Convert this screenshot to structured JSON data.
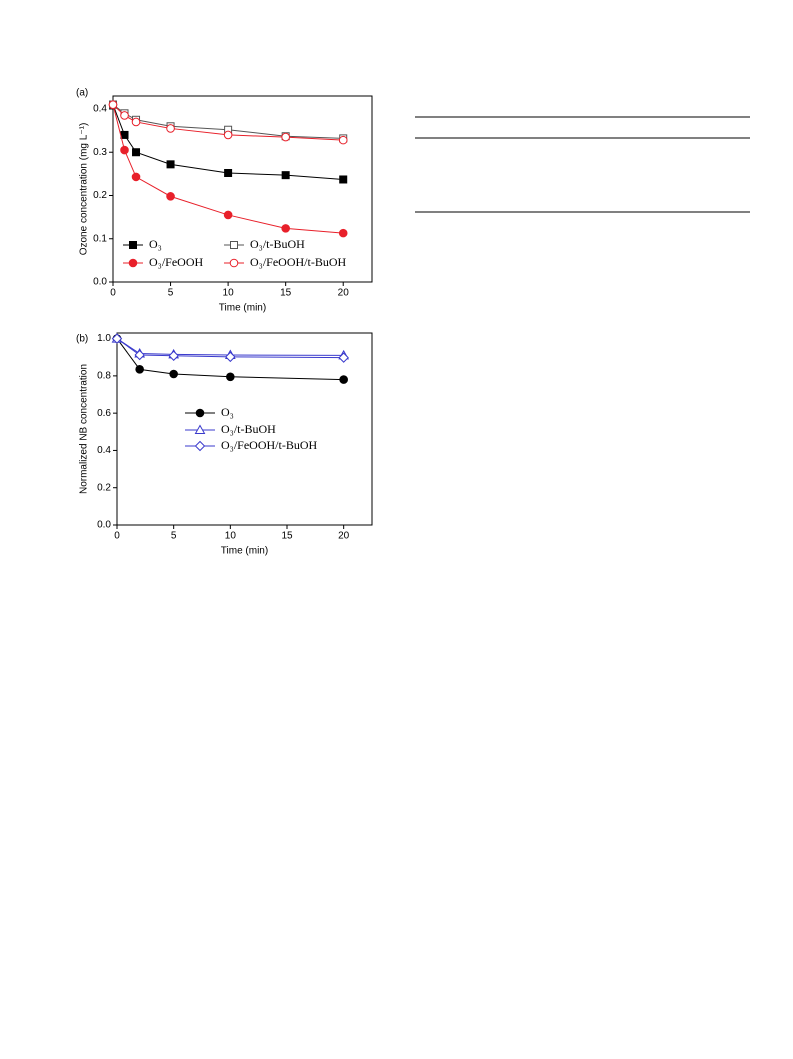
{
  "chart_data": [
    {
      "type": "line",
      "title": "(a)",
      "x_label": "Time (min)",
      "y_label": "Ozone concentration (mg L⁻¹)",
      "x": [
        0,
        1,
        2,
        5,
        10,
        15,
        20
      ],
      "xlim": [
        0,
        22.5
      ],
      "xticks": [
        0,
        5,
        10,
        15,
        20
      ],
      "ylim": [
        0,
        0.43
      ],
      "yticks": [
        {
          "value": 0,
          "label": "0.0"
        },
        0.1,
        0.2,
        0.3,
        0.4
      ],
      "series": [
        {
          "name": "O₃",
          "color": "#000000",
          "marker": "square",
          "filled": true,
          "values": [
            0.41,
            0.34,
            0.3,
            0.272,
            0.252,
            0.247,
            0.237
          ]
        },
        {
          "name": "O₃/t-BuOH",
          "color": "#555555",
          "marker": "square",
          "filled": false,
          "values": [
            0.41,
            0.39,
            0.375,
            0.36,
            0.352,
            0.337,
            0.332
          ]
        },
        {
          "name": "O₃/FeOOH",
          "color": "#e8202a",
          "marker": "circle",
          "filled": true,
          "values": [
            0.41,
            0.305,
            0.243,
            0.198,
            0.155,
            0.124,
            0.113
          ]
        },
        {
          "name": "O₃/FeOOH/t-BuOH",
          "color": "#e8202a",
          "marker": "circle",
          "filled": false,
          "values": [
            0.41,
            0.385,
            0.37,
            0.355,
            0.34,
            0.335,
            0.328
          ]
        }
      ]
    },
    {
      "type": "line",
      "title": "(b)",
      "x_label": "Time (min)",
      "y_label": "Normalized NB concentration",
      "x": [
        0,
        2,
        5,
        10,
        20
      ],
      "xlim": [
        0,
        22.5
      ],
      "xticks": [
        0,
        5,
        10,
        15,
        20
      ],
      "ylim": [
        0,
        1.03
      ],
      "yticks": [
        {
          "value": 0,
          "label": "0.0"
        },
        0.2,
        0.4,
        0.6,
        0.8,
        {
          "value": 1,
          "label": "1.0"
        }
      ],
      "series": [
        {
          "name": "O₃",
          "color": "#000000",
          "marker": "circle",
          "filled": true,
          "values": [
            1.0,
            0.835,
            0.81,
            0.795,
            0.78
          ]
        },
        {
          "name": "O₃/t-BuOH",
          "color": "#3a3acc",
          "marker": "triangle",
          "filled": false,
          "values": [
            1.0,
            0.92,
            0.915,
            0.912,
            0.91
          ]
        },
        {
          "name": "O₃/FeOOH/t-BuOH",
          "color": "#3a3acc",
          "marker": "diamond",
          "filled": false,
          "values": [
            1.0,
            0.912,
            0.908,
            0.902,
            0.898
          ]
        }
      ]
    }
  ]
}
